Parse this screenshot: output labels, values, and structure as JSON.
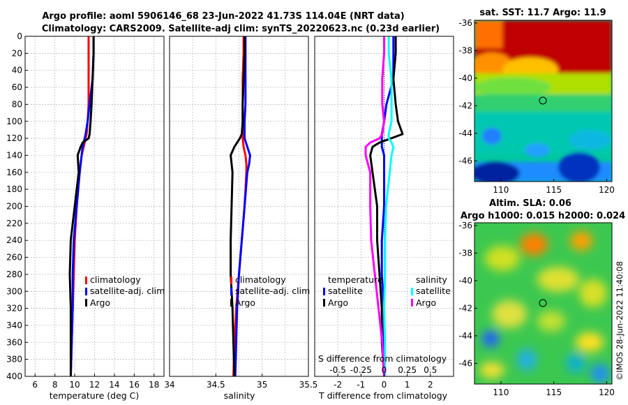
{
  "header": {
    "title_line1": "Argo profile: aoml 5906146_68 23-Jun-2022 41.73S 114.04E (NRT data)",
    "title_line2": "Climatology: CARS2009. Satellite-adj clim: synTS_20220623.nc (0.23d earlier)"
  },
  "colors": {
    "climatology": "#ff0000",
    "satellite_adj": "#0000ff",
    "argo": "#000000",
    "temp_satellite": "#0000ff",
    "sal_satellite": "#00ffff",
    "sal_argo": "#ff00ff"
  },
  "chart_data": [
    {
      "id": "temperature",
      "type": "line",
      "xlabel": "temperature (deg C)",
      "ylabel": "",
      "xlim": [
        5,
        19
      ],
      "ylim": [
        400,
        0
      ],
      "x_ticks": [
        "6",
        "8",
        "10",
        "12",
        "14",
        "16",
        "18"
      ],
      "y_ticks": [
        "0",
        "20",
        "40",
        "60",
        "80",
        "100",
        "120",
        "140",
        "160",
        "180",
        "200",
        "220",
        "240",
        "260",
        "280",
        "300",
        "320",
        "340",
        "360",
        "380",
        "400"
      ],
      "depth": [
        0,
        20,
        50,
        80,
        100,
        115,
        120,
        125,
        130,
        140,
        160,
        200,
        240,
        280,
        320,
        360,
        400
      ],
      "series": [
        {
          "name": "climatology",
          "values": [
            11.4,
            11.4,
            11.4,
            11.4,
            11.3,
            11.2,
            11.1,
            11.0,
            10.9,
            10.7,
            10.5,
            10.2,
            10.0,
            9.9,
            9.8,
            9.7,
            9.6
          ]
        },
        {
          "name": "satellite-adj. clim",
          "values": [
            11.9,
            11.9,
            11.8,
            11.5,
            11.3,
            11.1,
            11.0,
            10.9,
            10.8,
            10.7,
            10.5,
            10.2,
            9.9,
            9.8,
            9.8,
            9.7,
            9.6
          ]
        },
        {
          "name": "Argo",
          "values": [
            11.9,
            11.9,
            11.8,
            11.7,
            11.6,
            11.5,
            11.4,
            10.8,
            10.6,
            10.3,
            10.4,
            10.0,
            9.6,
            9.5,
            9.6,
            9.6,
            9.6
          ]
        }
      ],
      "legend": [
        "climatology",
        "satellite-adj. clim",
        "Argo"
      ]
    },
    {
      "id": "salinity",
      "type": "line",
      "xlabel": "salinity",
      "ylabel": "",
      "xlim": [
        34,
        35.5
      ],
      "ylim": [
        400,
        0
      ],
      "x_ticks": [
        "34",
        "34.5",
        "35",
        "35.5"
      ],
      "depth": [
        0,
        20,
        50,
        80,
        100,
        115,
        120,
        130,
        140,
        150,
        160,
        200,
        240,
        280,
        320,
        360,
        400
      ],
      "series": [
        {
          "name": "climatology",
          "values": [
            34.8,
            34.8,
            34.79,
            34.79,
            34.79,
            34.79,
            34.79,
            34.8,
            34.82,
            34.83,
            34.83,
            34.81,
            34.78,
            34.75,
            34.72,
            34.7,
            34.69
          ]
        },
        {
          "name": "satellite-adj. clim",
          "values": [
            34.82,
            34.82,
            34.82,
            34.82,
            34.81,
            34.81,
            34.81,
            34.84,
            34.87,
            34.86,
            34.84,
            34.81,
            34.78,
            34.75,
            34.73,
            34.72,
            34.71
          ]
        },
        {
          "name": "Argo",
          "values": [
            34.81,
            34.81,
            34.8,
            34.79,
            34.79,
            34.78,
            34.76,
            34.7,
            34.66,
            34.67,
            34.68,
            34.67,
            34.66,
            34.66,
            34.68,
            34.69,
            34.7
          ]
        }
      ],
      "legend": [
        "climatology",
        "satellite-adj. clim",
        "Argo"
      ]
    },
    {
      "id": "difference",
      "type": "line",
      "xlabel": "T difference from climatology",
      "top_label": "S difference from climatology",
      "xlim": [
        -3,
        3
      ],
      "ylim": [
        400,
        0
      ],
      "x_ticks": [
        "-2",
        "-1",
        "0",
        "1",
        "2"
      ],
      "top_ticks": [
        "-0.5",
        "-0.25",
        "0",
        "0.25",
        "0.5"
      ],
      "depth": [
        0,
        20,
        50,
        80,
        100,
        115,
        120,
        125,
        130,
        140,
        160,
        200,
        240,
        280,
        320,
        360,
        400
      ],
      "series": [
        {
          "name": "temperature satellite",
          "values": [
            0.4,
            0.4,
            0.4,
            0.1,
            0.0,
            -0.1,
            -0.1,
            -0.1,
            -0.1,
            0.0,
            0.0,
            0.0,
            -0.1,
            -0.1,
            0.0,
            0.0,
            0.0
          ]
        },
        {
          "name": "temperature Argo",
          "values": [
            0.5,
            0.5,
            0.4,
            0.5,
            0.6,
            0.8,
            0.3,
            -0.2,
            -0.5,
            -0.6,
            -0.5,
            -0.3,
            -0.3,
            -0.2,
            -0.1,
            -0.1,
            0.0
          ]
        },
        {
          "name": "salinity satellite",
          "values": [
            0.05,
            0.05,
            0.08,
            0.08,
            0.08,
            0.05,
            0.05,
            0.08,
            0.1,
            0.08,
            0.06,
            0.02,
            0.01,
            0.01,
            0.0,
            0.01,
            0.01
          ]
        },
        {
          "name": "salinity Argo",
          "values": [
            0.0,
            0.0,
            -0.02,
            -0.02,
            0.0,
            -0.02,
            -0.05,
            -0.15,
            -0.2,
            -0.2,
            -0.15,
            -0.15,
            -0.14,
            -0.1,
            -0.06,
            -0.02,
            0.0
          ]
        }
      ],
      "legend_headings": [
        "temperature",
        "salinity"
      ],
      "legend": [
        "satellite",
        "Argo",
        "satellite",
        "Argo"
      ]
    },
    {
      "id": "sst-map",
      "type": "heatmap",
      "title": "sat. SST: 11.7 Argo: 11.9",
      "x_ticks": [
        "110",
        "115",
        "120"
      ],
      "y_ticks": [
        "-36",
        "-38",
        "-40",
        "-42",
        "-44",
        "-46"
      ],
      "xlim": [
        107.5,
        120.5
      ],
      "ylim": [
        -47.5,
        -35.8
      ],
      "marker": {
        "lon": 114.04,
        "lat": -41.73
      }
    },
    {
      "id": "sla-map",
      "type": "heatmap",
      "title_line1": "Altim. SLA: 0.06",
      "title_line2": "Argo h1000: 0.015 h2000: 0.024",
      "x_ticks": [
        "110",
        "115",
        "120"
      ],
      "y_ticks": [
        "-36",
        "-38",
        "-40",
        "-42",
        "-44",
        "-46"
      ],
      "xlim": [
        107.5,
        120.5
      ],
      "ylim": [
        -47.5,
        -35.8
      ],
      "marker": {
        "lon": 114.04,
        "lat": -41.73
      }
    }
  ],
  "watermark": "©IMOS 28-Jun-2022 11:40:08"
}
